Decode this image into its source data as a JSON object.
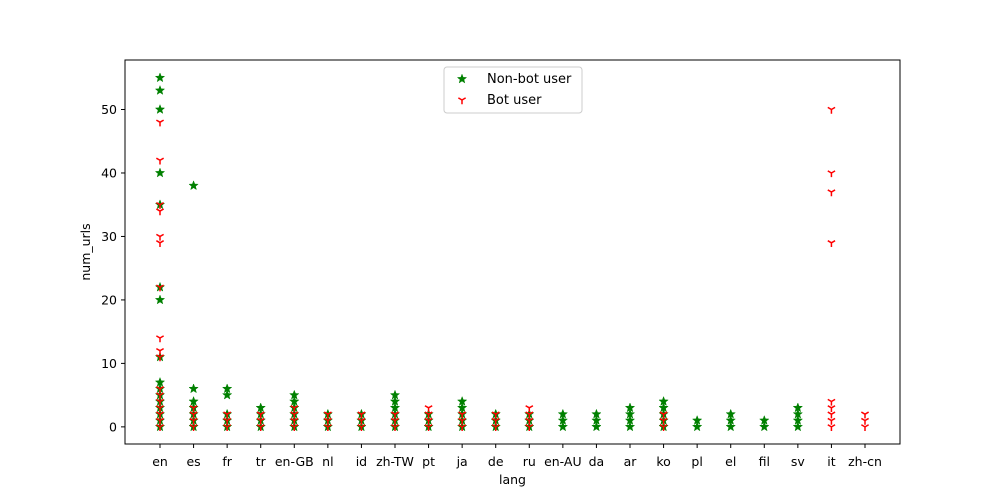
{
  "chart_data": {
    "type": "scatter",
    "title": "",
    "xlabel": "lang",
    "ylabel": "num_urls",
    "categories": [
      "en",
      "es",
      "fr",
      "tr",
      "en-GB",
      "nl",
      "id",
      "zh-TW",
      "pt",
      "ja",
      "de",
      "ru",
      "en-AU",
      "da",
      "ar",
      "ko",
      "pl",
      "el",
      "fil",
      "sv",
      "it",
      "zh-cn"
    ],
    "ylim": [
      -2.7,
      57.8
    ],
    "yticks": [
      0,
      10,
      20,
      30,
      40,
      50
    ],
    "grid": false,
    "legend": {
      "placement": "upper-center"
    },
    "series": [
      {
        "name": "Non-bot user",
        "marker": "star",
        "color": "#008000",
        "points": [
          {
            "x": "en",
            "y": 0
          },
          {
            "x": "en",
            "y": 1
          },
          {
            "x": "en",
            "y": 2
          },
          {
            "x": "en",
            "y": 3
          },
          {
            "x": "en",
            "y": 4
          },
          {
            "x": "en",
            "y": 5
          },
          {
            "x": "en",
            "y": 6
          },
          {
            "x": "en",
            "y": 7
          },
          {
            "x": "en",
            "y": 11
          },
          {
            "x": "en",
            "y": 20
          },
          {
            "x": "en",
            "y": 22
          },
          {
            "x": "en",
            "y": 35
          },
          {
            "x": "en",
            "y": 40
          },
          {
            "x": "en",
            "y": 50
          },
          {
            "x": "en",
            "y": 53
          },
          {
            "x": "en",
            "y": 55
          },
          {
            "x": "es",
            "y": 0
          },
          {
            "x": "es",
            "y": 1
          },
          {
            "x": "es",
            "y": 2
          },
          {
            "x": "es",
            "y": 3
          },
          {
            "x": "es",
            "y": 4
          },
          {
            "x": "es",
            "y": 6
          },
          {
            "x": "es",
            "y": 38
          },
          {
            "x": "fr",
            "y": 0
          },
          {
            "x": "fr",
            "y": 1
          },
          {
            "x": "fr",
            "y": 2
          },
          {
            "x": "fr",
            "y": 5
          },
          {
            "x": "fr",
            "y": 6
          },
          {
            "x": "tr",
            "y": 0
          },
          {
            "x": "tr",
            "y": 1
          },
          {
            "x": "tr",
            "y": 2
          },
          {
            "x": "tr",
            "y": 3
          },
          {
            "x": "en-GB",
            "y": 0
          },
          {
            "x": "en-GB",
            "y": 1
          },
          {
            "x": "en-GB",
            "y": 2
          },
          {
            "x": "en-GB",
            "y": 3
          },
          {
            "x": "en-GB",
            "y": 4
          },
          {
            "x": "en-GB",
            "y": 5
          },
          {
            "x": "nl",
            "y": 0
          },
          {
            "x": "nl",
            "y": 1
          },
          {
            "x": "nl",
            "y": 2
          },
          {
            "x": "id",
            "y": 0
          },
          {
            "x": "id",
            "y": 1
          },
          {
            "x": "id",
            "y": 2
          },
          {
            "x": "zh-TW",
            "y": 0
          },
          {
            "x": "zh-TW",
            "y": 1
          },
          {
            "x": "zh-TW",
            "y": 2
          },
          {
            "x": "zh-TW",
            "y": 3
          },
          {
            "x": "zh-TW",
            "y": 4
          },
          {
            "x": "zh-TW",
            "y": 5
          },
          {
            "x": "pt",
            "y": 0
          },
          {
            "x": "pt",
            "y": 1
          },
          {
            "x": "pt",
            "y": 2
          },
          {
            "x": "ja",
            "y": 0
          },
          {
            "x": "ja",
            "y": 1
          },
          {
            "x": "ja",
            "y": 2
          },
          {
            "x": "ja",
            "y": 3
          },
          {
            "x": "ja",
            "y": 4
          },
          {
            "x": "de",
            "y": 0
          },
          {
            "x": "de",
            "y": 1
          },
          {
            "x": "de",
            "y": 2
          },
          {
            "x": "ru",
            "y": 0
          },
          {
            "x": "ru",
            "y": 1
          },
          {
            "x": "ru",
            "y": 2
          },
          {
            "x": "en-AU",
            "y": 0
          },
          {
            "x": "en-AU",
            "y": 1
          },
          {
            "x": "en-AU",
            "y": 2
          },
          {
            "x": "da",
            "y": 0
          },
          {
            "x": "da",
            "y": 1
          },
          {
            "x": "da",
            "y": 2
          },
          {
            "x": "ar",
            "y": 0
          },
          {
            "x": "ar",
            "y": 1
          },
          {
            "x": "ar",
            "y": 2
          },
          {
            "x": "ar",
            "y": 3
          },
          {
            "x": "ko",
            "y": 0
          },
          {
            "x": "ko",
            "y": 1
          },
          {
            "x": "ko",
            "y": 2
          },
          {
            "x": "ko",
            "y": 3
          },
          {
            "x": "ko",
            "y": 4
          },
          {
            "x": "pl",
            "y": 0
          },
          {
            "x": "pl",
            "y": 1
          },
          {
            "x": "el",
            "y": 0
          },
          {
            "x": "el",
            "y": 1
          },
          {
            "x": "el",
            "y": 2
          },
          {
            "x": "fil",
            "y": 0
          },
          {
            "x": "fil",
            "y": 1
          },
          {
            "x": "sv",
            "y": 0
          },
          {
            "x": "sv",
            "y": 1
          },
          {
            "x": "sv",
            "y": 2
          },
          {
            "x": "sv",
            "y": 3
          }
        ]
      },
      {
        "name": "Bot user",
        "marker": "tri_up",
        "color": "#ff0000",
        "points": [
          {
            "x": "en",
            "y": 0
          },
          {
            "x": "en",
            "y": 1
          },
          {
            "x": "en",
            "y": 2
          },
          {
            "x": "en",
            "y": 3
          },
          {
            "x": "en",
            "y": 4
          },
          {
            "x": "en",
            "y": 5
          },
          {
            "x": "en",
            "y": 6
          },
          {
            "x": "en",
            "y": 11
          },
          {
            "x": "en",
            "y": 12
          },
          {
            "x": "en",
            "y": 14
          },
          {
            "x": "en",
            "y": 22
          },
          {
            "x": "en",
            "y": 29
          },
          {
            "x": "en",
            "y": 30
          },
          {
            "x": "en",
            "y": 34
          },
          {
            "x": "en",
            "y": 35
          },
          {
            "x": "en",
            "y": 42
          },
          {
            "x": "en",
            "y": 48
          },
          {
            "x": "es",
            "y": 0
          },
          {
            "x": "es",
            "y": 1
          },
          {
            "x": "es",
            "y": 2
          },
          {
            "x": "es",
            "y": 3
          },
          {
            "x": "fr",
            "y": 0
          },
          {
            "x": "fr",
            "y": 1
          },
          {
            "x": "fr",
            "y": 2
          },
          {
            "x": "tr",
            "y": 0
          },
          {
            "x": "tr",
            "y": 1
          },
          {
            "x": "tr",
            "y": 2
          },
          {
            "x": "en-GB",
            "y": 0
          },
          {
            "x": "en-GB",
            "y": 1
          },
          {
            "x": "en-GB",
            "y": 2
          },
          {
            "x": "en-GB",
            "y": 3
          },
          {
            "x": "nl",
            "y": 0
          },
          {
            "x": "nl",
            "y": 1
          },
          {
            "x": "nl",
            "y": 2
          },
          {
            "x": "id",
            "y": 0
          },
          {
            "x": "id",
            "y": 1
          },
          {
            "x": "id",
            "y": 2
          },
          {
            "x": "zh-TW",
            "y": 0
          },
          {
            "x": "zh-TW",
            "y": 1
          },
          {
            "x": "zh-TW",
            "y": 2
          },
          {
            "x": "pt",
            "y": 0
          },
          {
            "x": "pt",
            "y": 1
          },
          {
            "x": "pt",
            "y": 2
          },
          {
            "x": "pt",
            "y": 3
          },
          {
            "x": "ja",
            "y": 0
          },
          {
            "x": "ja",
            "y": 1
          },
          {
            "x": "ja",
            "y": 2
          },
          {
            "x": "de",
            "y": 0
          },
          {
            "x": "de",
            "y": 1
          },
          {
            "x": "de",
            "y": 2
          },
          {
            "x": "ru",
            "y": 0
          },
          {
            "x": "ru",
            "y": 1
          },
          {
            "x": "ru",
            "y": 2
          },
          {
            "x": "ru",
            "y": 3
          },
          {
            "x": "ko",
            "y": 0
          },
          {
            "x": "ko",
            "y": 1
          },
          {
            "x": "ko",
            "y": 2
          },
          {
            "x": "it",
            "y": 0
          },
          {
            "x": "it",
            "y": 1
          },
          {
            "x": "it",
            "y": 2
          },
          {
            "x": "it",
            "y": 3
          },
          {
            "x": "it",
            "y": 4
          },
          {
            "x": "it",
            "y": 29
          },
          {
            "x": "it",
            "y": 37
          },
          {
            "x": "it",
            "y": 40
          },
          {
            "x": "it",
            "y": 50
          },
          {
            "x": "zh-cn",
            "y": 0
          },
          {
            "x": "zh-cn",
            "y": 1
          },
          {
            "x": "zh-cn",
            "y": 2
          }
        ]
      }
    ]
  }
}
